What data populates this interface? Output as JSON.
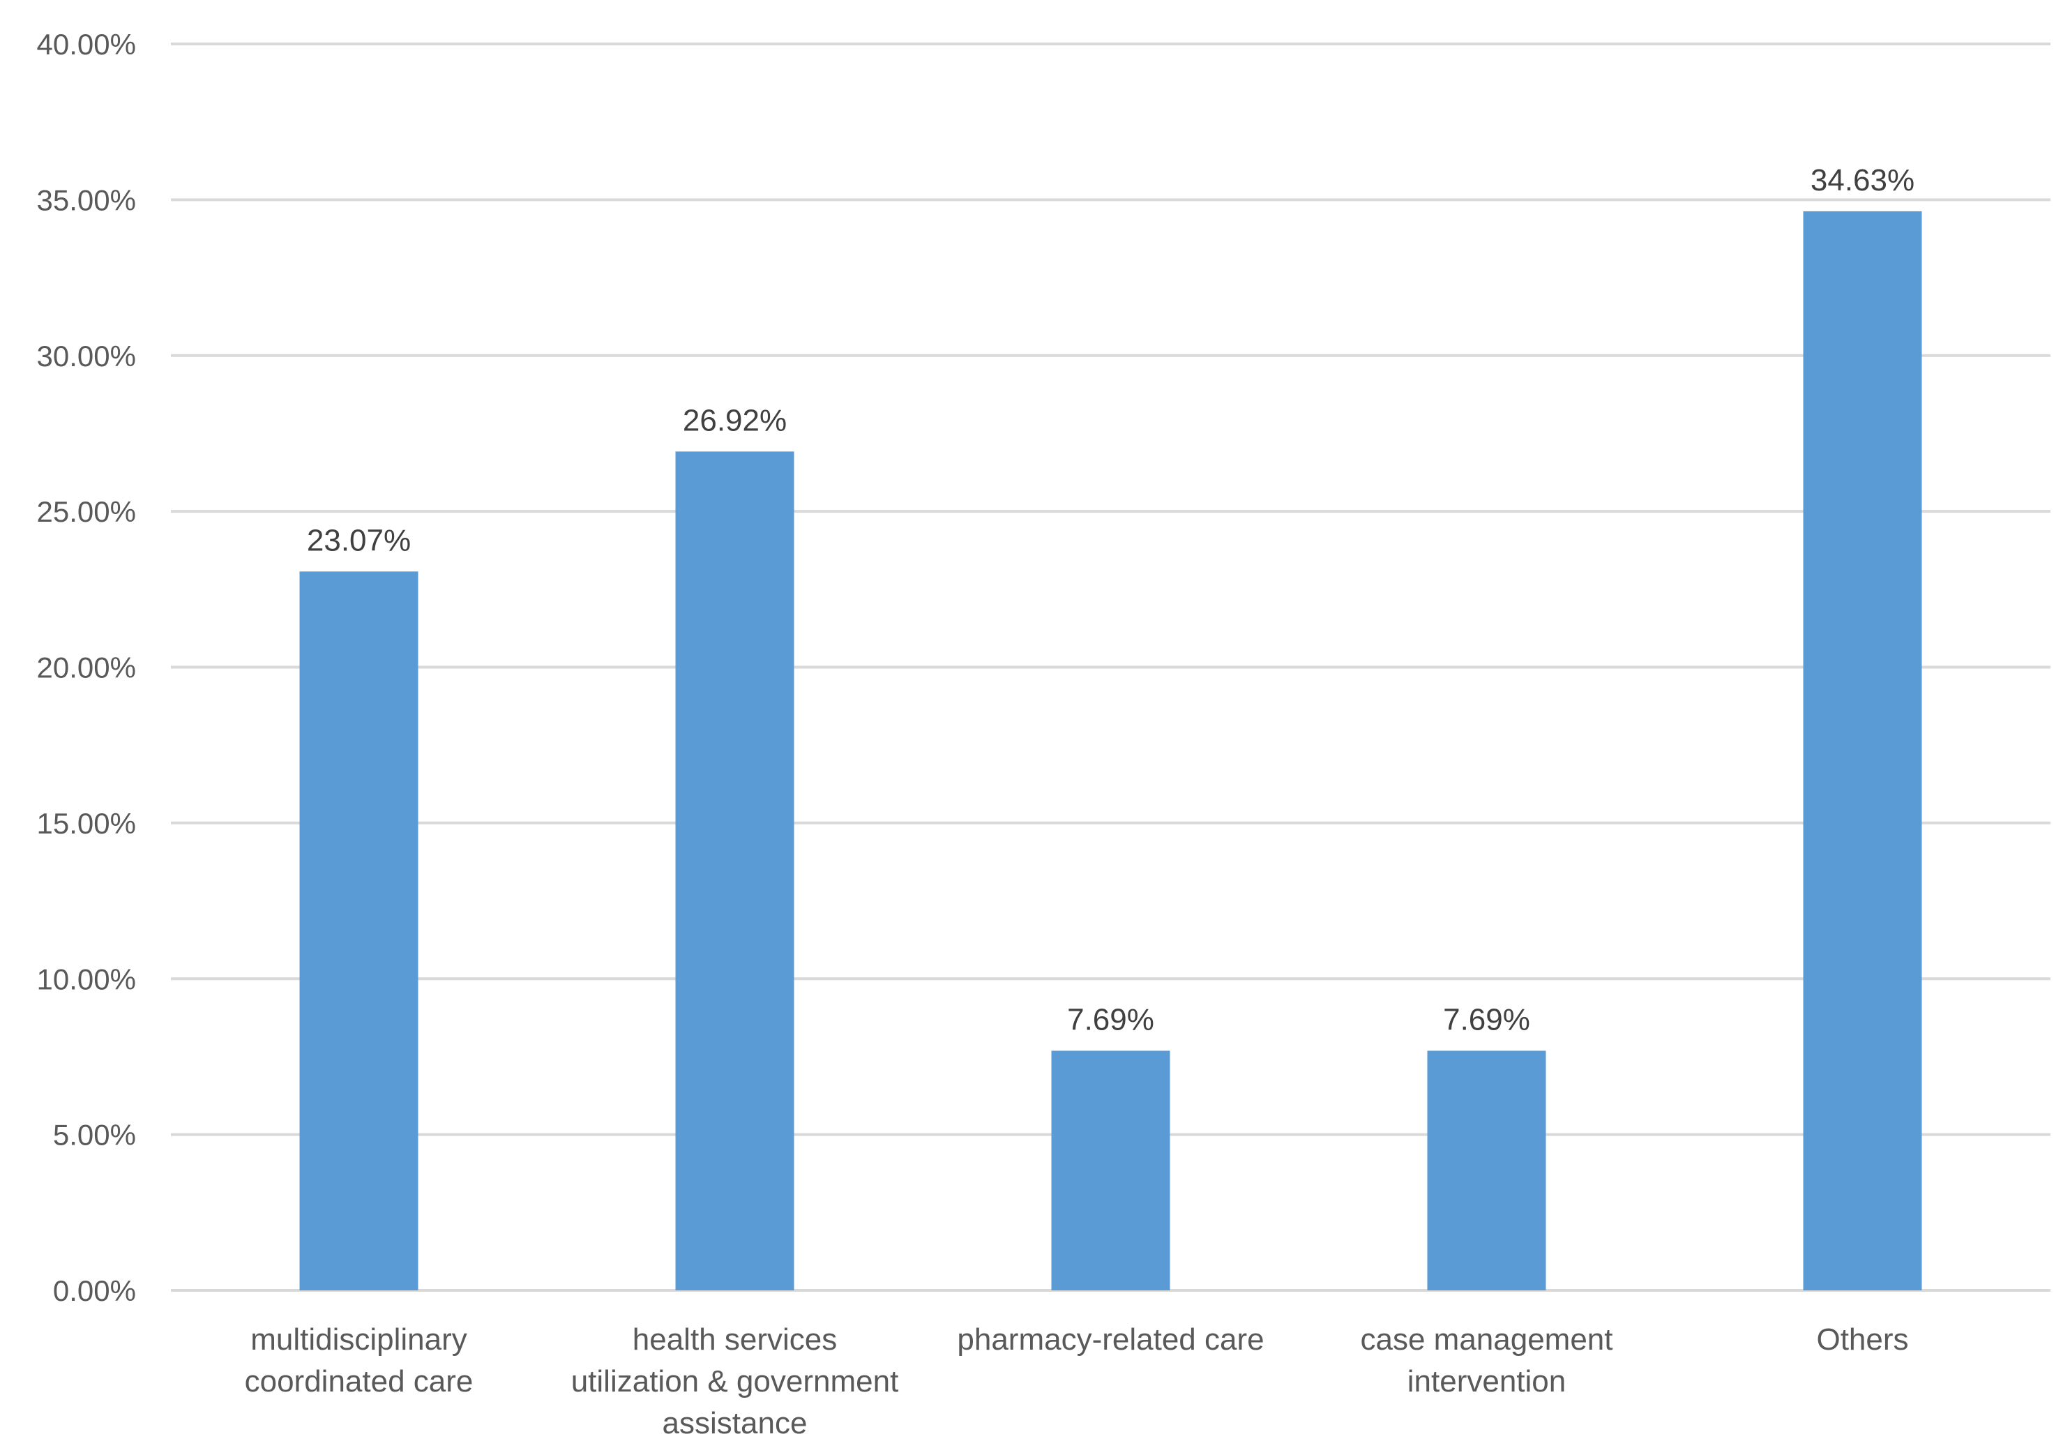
{
  "chart_data": {
    "type": "bar",
    "title": "",
    "xlabel": "",
    "ylabel": "",
    "categories": [
      [
        "multidisciplinary",
        "coordinated care"
      ],
      [
        "health services",
        "utilization & government",
        "assistance"
      ],
      [
        "pharmacy-related care"
      ],
      [
        "case management",
        "intervention"
      ],
      [
        "Others"
      ]
    ],
    "values": [
      23.07,
      26.92,
      7.69,
      7.69,
      34.63
    ],
    "data_labels": [
      "23.07%",
      "26.92%",
      "7.69%",
      "7.69%",
      "34.63%"
    ],
    "ylim": [
      0,
      40
    ],
    "yticks": [
      0,
      5,
      10,
      15,
      20,
      25,
      30,
      35,
      40
    ],
    "ytick_labels": [
      "0.00%",
      "5.00%",
      "10.00%",
      "15.00%",
      "20.00%",
      "25.00%",
      "30.00%",
      "35.00%",
      "40.00%"
    ],
    "grid": true,
    "legend": "none",
    "bar_color": "#5b9bd5"
  }
}
